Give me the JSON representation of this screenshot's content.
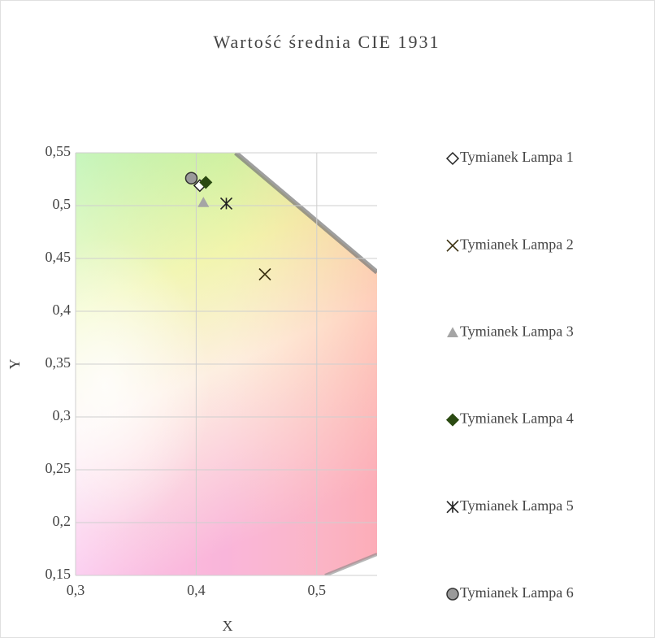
{
  "chart_data": {
    "type": "scatter",
    "title": "Wartość średnia CIE 1931",
    "x_label": "X",
    "y_label": "Y",
    "xlim": [
      0.3,
      0.55
    ],
    "ylim": [
      0.15,
      0.55
    ],
    "xticks": [
      {
        "value": 0.3,
        "label": "0,3"
      },
      {
        "value": 0.4,
        "label": "0,4"
      },
      {
        "value": 0.5,
        "label": "0,5"
      }
    ],
    "yticks": [
      {
        "value": 0.15,
        "label": "0,15"
      },
      {
        "value": 0.2,
        "label": "0,2"
      },
      {
        "value": 0.25,
        "label": "0,25"
      },
      {
        "value": 0.3,
        "label": "0,3"
      },
      {
        "value": 0.35,
        "label": "0,35"
      },
      {
        "value": 0.4,
        "label": "0,4"
      },
      {
        "value": 0.45,
        "label": "0,45"
      },
      {
        "value": 0.5,
        "label": "0,5"
      },
      {
        "value": 0.55,
        "label": "0,55"
      }
    ],
    "grid": true,
    "legend": "right",
    "series": [
      {
        "name": "Tymianek Lampa 1",
        "marker": "diamond-open",
        "color": "#222222",
        "x": [
          0.403
        ],
        "values": [
          0.519
        ]
      },
      {
        "name": "Tymianek Lampa 2",
        "marker": "cross",
        "color": "#3a3010",
        "x": [
          0.457
        ],
        "values": [
          0.435
        ]
      },
      {
        "name": "Tymianek Lampa 3",
        "marker": "triangle",
        "color": "#a5a5a5",
        "x": [
          0.406
        ],
        "values": [
          0.503
        ]
      },
      {
        "name": "Tymianek Lampa 4",
        "marker": "diamond",
        "color": "#2b4a12",
        "x": [
          0.408
        ],
        "values": [
          0.522
        ]
      },
      {
        "name": "Tymianek Lampa 5",
        "marker": "asterisk",
        "color": "#222222",
        "x": [
          0.425
        ],
        "values": [
          0.502
        ]
      },
      {
        "name": "Tymianek Lampa 6",
        "marker": "circle",
        "color": "#9a9a9a",
        "x": [
          0.396
        ],
        "values": [
          0.526
        ]
      }
    ]
  }
}
